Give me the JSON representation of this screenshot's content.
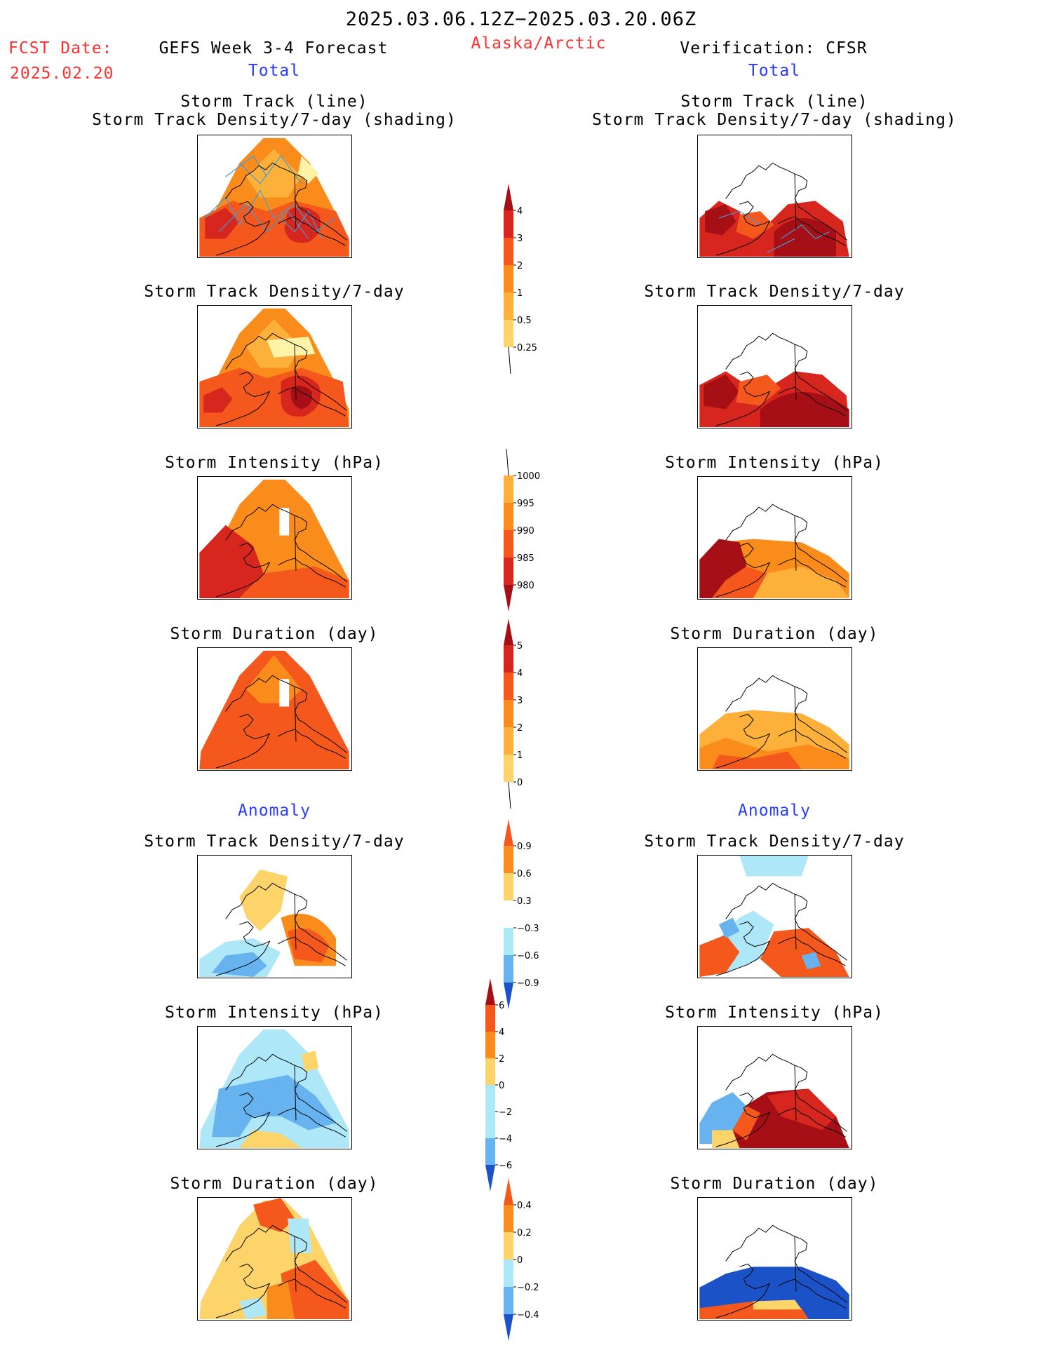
{
  "header": {
    "period": "2025.03.06.12Z−2025.03.20.06Z",
    "fcst_label": "FCST Date:",
    "fcst_date": "2025.02.20",
    "model": "GEFS Week 3-4 Forecast",
    "region": "Alaska/Arctic",
    "verification": "Verification: CFSR",
    "total_left": "Total",
    "total_right": "Total",
    "anomaly_left": "Anomaly",
    "anomaly_right": "Anomaly"
  },
  "panels": {
    "p1_title_a": "Storm Track (line)",
    "p1_title_b": "Storm Track Density/7-day (shading)",
    "density": "Storm Track Density/7-day",
    "intensity": "Storm Intensity (hPa)",
    "duration": "Storm Duration (day)"
  },
  "colorbars": {
    "density": [
      "4",
      "3",
      "2",
      "1",
      "0.5",
      "0.25"
    ],
    "intensity": [
      "1000",
      "995",
      "990",
      "985",
      "980"
    ],
    "duration": [
      "5",
      "4",
      "3",
      "2",
      "1",
      "0"
    ],
    "density_anom": [
      "0.9",
      "0.6",
      "0.3",
      "−0.3",
      "−0.6",
      "−0.9"
    ],
    "intensity_anom": [
      "6",
      "4",
      "2",
      "0",
      "−2",
      "−4",
      "−6"
    ],
    "duration_anom": [
      "0.4",
      "0.2",
      "0",
      "−0.2",
      "−0.4"
    ]
  },
  "colors": {
    "c_darkred": "#a50f15",
    "c_red": "#d7261e",
    "c_orangered": "#f4581c",
    "c_orange": "#fa8c1c",
    "c_lightorange": "#fdb03a",
    "c_yellow": "#fdd46a",
    "c_paleyellow": "#fff3a8",
    "c_lightblue": "#aee7f8",
    "c_midblue": "#66b3f0",
    "c_blue": "#2c7bdc",
    "c_darkblue": "#1c52c8",
    "c_track": "#3aa0d8"
  }
}
